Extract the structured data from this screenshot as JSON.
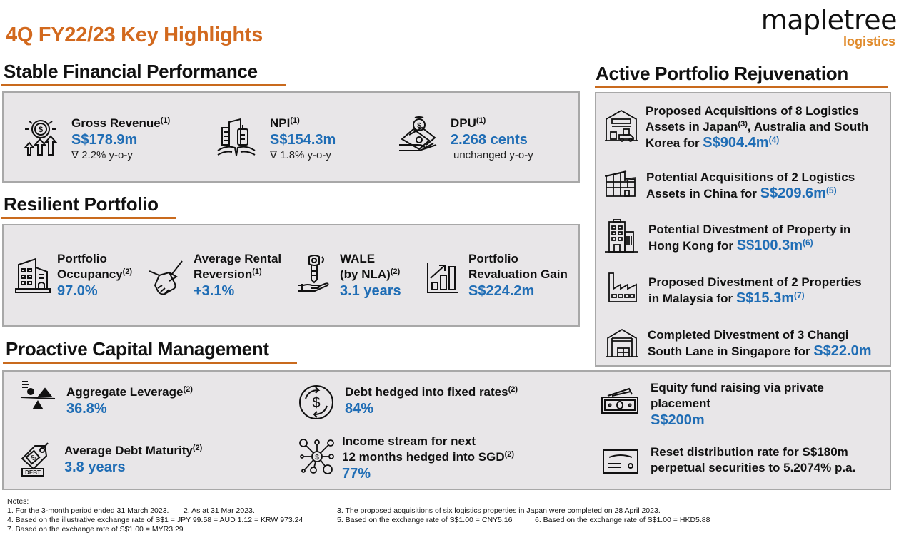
{
  "title": "4Q FY22/23 Key Highlights",
  "logo": {
    "word": "mapletree",
    "sub": "logistics"
  },
  "colors": {
    "accent": "#d2691e",
    "value_blue": "#1f6db5",
    "box_bg": "#e8e6e8"
  },
  "financial": {
    "title": "Stable Financial Performance",
    "items": [
      {
        "icon": "revenue-growth-icon",
        "label": "Gross Revenue",
        "note": "(1)",
        "value": "S$178.9m",
        "change": "∇ 2.2% y-o-y"
      },
      {
        "icon": "buildings-hands-icon",
        "label": "NPI",
        "note": "(1)",
        "value": "S$154.3m",
        "change": "∇ 1.8% y-o-y"
      },
      {
        "icon": "money-hand-icon",
        "label": "DPU",
        "note": "(1)",
        "value": "2.268 cents",
        "change": "unchanged y-o-y"
      }
    ]
  },
  "portfolio": {
    "title": "Resilient Portfolio",
    "items": [
      {
        "icon": "building-icon",
        "label1": "Portfolio",
        "label2": "Occupancy",
        "note": "(2)",
        "value": "97.0%"
      },
      {
        "icon": "handshake-icon",
        "label1": "Average Rental",
        "label2": "Reversion",
        "note": "(1)",
        "value": "+3.1%"
      },
      {
        "icon": "key-hand-icon",
        "label1": "WALE",
        "label2": "(by NLA)",
        "note": "(2)",
        "value": "3.1 years"
      },
      {
        "icon": "bar-growth-icon",
        "label1": "Portfolio",
        "label2": "Revaluation Gain",
        "note": "",
        "value": "S$224.2m"
      }
    ]
  },
  "capital": {
    "title": "Proactive Capital Management",
    "items": [
      {
        "icon": "balance-scale-icon",
        "label": "Aggregate Leverage",
        "note": "(2)",
        "value": "36.8%"
      },
      {
        "icon": "debt-tag-icon",
        "label": "Average Debt Maturity",
        "note": "(2)",
        "value": "3.8 years"
      },
      {
        "icon": "dollar-cycle-icon",
        "label": "Debt hedged into fixed rates",
        "note": "(2)",
        "value": "84%"
      },
      {
        "icon": "dollar-network-icon",
        "label1": "Income stream for next",
        "label2": "12 months hedged into SGD",
        "note": "(2)",
        "value": "77%"
      },
      {
        "icon": "cash-icon",
        "label1": "Equity fund raising via private",
        "label2": "placement",
        "value": "S$200m"
      },
      {
        "icon": "certificate-icon",
        "label1": "Reset distribution rate for S$180m",
        "label2": "perpetual securities to 5.2074% p.a."
      }
    ]
  },
  "rejuvenation": {
    "title": "Active Portfolio Rejuvenation",
    "items": [
      {
        "icon": "warehouse-truck-icon",
        "line1": "Proposed Acquisitions of 8 Logistics",
        "line2a": "Assets in Japan",
        "line2note": "(3)",
        "line2b": ", Australia and South",
        "line3": "Korea for ",
        "value": "S$904.4m",
        "note": "(4)"
      },
      {
        "icon": "factory-roof-icon",
        "line1": "Potential Acquisitions of 2 Logistics",
        "line2": "Assets in China for ",
        "value": "S$209.6m",
        "note": "(5)"
      },
      {
        "icon": "office-building-icon",
        "line1": "Potential Divestment of Property in",
        "line2": "Hong Kong for ",
        "value": "S$100.3m",
        "note": "(6)"
      },
      {
        "icon": "factory-icon",
        "line1": "Proposed Divestment of 2 Properties",
        "line2": "in Malaysia for ",
        "value": "S$15.3m",
        "note": "(7)"
      },
      {
        "icon": "warehouse-icon",
        "line1": "Completed Divestment of 3 Changi",
        "line2": "South Lane in Singapore for ",
        "value": "S$22.0m",
        "note": ""
      }
    ]
  },
  "notes": {
    "heading": "Notes:",
    "n1": "1. For the 3-month period ended 31 March 2023.",
    "n2": "2. As at 31 Mar 2023.",
    "n3": "3. The proposed acquisitions of six logistics properties in Japan were completed on 28 April 2023.",
    "n4": "4. Based on the illustrative exchange rate of S$1 = JPY 99.58 = AUD 1.12 = KRW 973.24",
    "n5": "5. Based on the exchange rate of S$1.00 = CNY5.16",
    "n6": "6. Based on the exchange rate of S$1.00 = HKD5.88",
    "n7": "7. Based on the exchange rate of S$1.00 = MYR3.29"
  }
}
